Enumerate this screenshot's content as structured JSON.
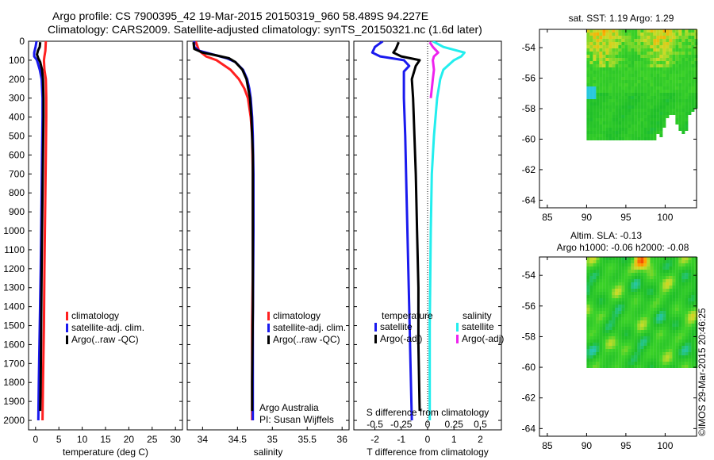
{
  "title": {
    "line1": "Argo profile: CS 7900395_42 19-Mar-2015 20150319_960 58.489S 94.227E",
    "line2": "Climatology: CARS2009. Satellite-adjusted climatology: synTS_20150321.nc (1.6d later)"
  },
  "colors": {
    "climatology": "#ff2020",
    "satellite": "#1a1aee",
    "argo": "#000000",
    "sal_satellite": "#22eeee",
    "sal_argo": "#ee22ee"
  },
  "chart_data": [
    {
      "type": "line",
      "id": "temperature",
      "xlabel": "temperature (deg C)",
      "ylabel": "",
      "xlim": [
        -1.5,
        31.5
      ],
      "ylim": [
        2050,
        0
      ],
      "xticks": [
        0,
        5,
        10,
        15,
        20,
        25,
        30
      ],
      "yticks": [
        0,
        100,
        200,
        300,
        400,
        500,
        600,
        700,
        800,
        900,
        1000,
        1100,
        1200,
        1300,
        1400,
        1500,
        1600,
        1700,
        1800,
        1900,
        2000
      ],
      "legend": [
        {
          "label": "climatology",
          "color": "#ff2020"
        },
        {
          "label": "satellite-adj. clim.",
          "color": "#1a1aee"
        },
        {
          "label": "Argo(..raw -QC)",
          "color": "#000000"
        }
      ],
      "series": [
        {
          "name": "climatology",
          "color": "#ff2020",
          "depth": [
            0,
            50,
            80,
            100,
            150,
            200,
            300,
            400,
            600,
            800,
            1000,
            1200,
            1500,
            1800,
            2000
          ],
          "values": [
            2.2,
            2.1,
            1.9,
            1.8,
            1.9,
            2.2,
            2.3,
            2.3,
            2.2,
            2.1,
            2.0,
            1.9,
            1.8,
            1.6,
            1.5
          ]
        },
        {
          "name": "satellite-adj. clim.",
          "color": "#1a1aee",
          "depth": [
            0,
            30,
            60,
            80,
            100,
            150,
            200,
            300,
            400,
            600,
            800,
            1000,
            1200,
            1500,
            1800,
            2000
          ],
          "values": [
            0.2,
            0.0,
            -0.3,
            -0.3,
            0.3,
            0.9,
            1.3,
            1.5,
            1.5,
            1.4,
            1.3,
            1.2,
            1.1,
            0.9,
            0.7,
            0.6
          ]
        },
        {
          "name": "Argo(..raw -QC)",
          "color": "#000000",
          "depth": [
            5,
            30,
            50,
            70,
            90,
            110,
            150,
            200,
            300,
            400,
            600,
            800,
            1000,
            1200,
            1500,
            1800,
            1950
          ],
          "values": [
            1.0,
            0.9,
            0.5,
            0.3,
            0.6,
            1.0,
            1.4,
            1.6,
            1.7,
            1.7,
            1.6,
            1.5,
            1.4,
            1.3,
            1.2,
            1.1,
            1.0
          ]
        }
      ]
    },
    {
      "type": "line",
      "id": "salinity",
      "xlabel": "salinity",
      "ylabel": "",
      "xlim": [
        33.78,
        36.1
      ],
      "ylim": [
        2050,
        0
      ],
      "xticks": [
        34,
        34.5,
        35,
        35.5,
        36
      ],
      "legend": [
        {
          "label": "climatology",
          "color": "#ff2020"
        },
        {
          "label": "satellite-adj. clim.",
          "color": "#1a1aee"
        },
        {
          "label": "Argo(..raw -QC)",
          "color": "#000000"
        }
      ],
      "annotations": [
        "Argo Australia",
        "PI: Susan Wijffels"
      ],
      "series": [
        {
          "name": "climatology",
          "color": "#ff2020",
          "depth": [
            0,
            50,
            80,
            100,
            150,
            200,
            250,
            300,
            400,
            500,
            700,
            900,
            1200,
            1500,
            2000
          ],
          "values": [
            33.9,
            33.95,
            34.05,
            34.2,
            34.4,
            34.52,
            34.6,
            34.65,
            34.69,
            34.71,
            34.72,
            34.72,
            34.72,
            34.71,
            34.71
          ]
        },
        {
          "name": "satellite-adj. clim.",
          "color": "#1a1aee",
          "depth": [
            0,
            30,
            50,
            70,
            90,
            110,
            150,
            200,
            250,
            300,
            400,
            500,
            700,
            1000,
            1500,
            2000
          ],
          "values": [
            33.88,
            33.88,
            33.95,
            34.15,
            34.35,
            34.47,
            34.58,
            34.64,
            34.67,
            34.69,
            34.71,
            34.72,
            34.73,
            34.73,
            34.72,
            34.72
          ]
        },
        {
          "name": "Argo(..raw -QC)",
          "color": "#000000",
          "depth": [
            5,
            40,
            60,
            75,
            90,
            110,
            150,
            200,
            300,
            400,
            600,
            800,
            1000,
            1400,
            1800,
            1950
          ],
          "values": [
            33.87,
            33.88,
            34.0,
            34.2,
            34.38,
            34.47,
            34.57,
            34.63,
            34.68,
            34.7,
            34.72,
            34.72,
            34.72,
            34.72,
            34.71,
            34.71
          ]
        }
      ]
    },
    {
      "type": "line",
      "id": "difference",
      "xlabel": "T difference from climatology",
      "xlabel_top": "S difference from climatology",
      "xlim": [
        -2.8,
        2.8
      ],
      "ylim": [
        2050,
        0
      ],
      "xticks": [
        -2,
        -1,
        0,
        1,
        2
      ],
      "xticks_top": [
        -0.5,
        -0.25,
        0,
        0.25,
        0.5
      ],
      "legend_left_title": "temperature",
      "legend_right_title": "salinity",
      "legend": [
        {
          "label": "satellite",
          "color": "#1a1aee"
        },
        {
          "label": "Argo(-adj)",
          "color": "#000000"
        },
        {
          "label": "satellite",
          "color": "#22eeee"
        },
        {
          "label": "Argo(-adj)",
          "color": "#ee22ee"
        }
      ],
      "series": [
        {
          "name": "temperature satellite",
          "color": "#1a1aee",
          "depth": [
            0,
            30,
            60,
            80,
            100,
            130,
            160,
            200,
            300,
            500,
            800,
            1100,
            1400,
            1700,
            2000
          ],
          "values": [
            -1.7,
            -2.0,
            -2.1,
            -1.8,
            -0.9,
            -0.7,
            -0.9,
            -0.9,
            -0.9,
            -0.85,
            -0.8,
            -0.75,
            -0.7,
            -0.65,
            -0.6
          ]
        },
        {
          "name": "temperature Argo(-adj)",
          "color": "#000000",
          "depth": [
            5,
            40,
            60,
            80,
            100,
            130,
            200,
            300,
            500,
            700,
            1000,
            1300,
            1600,
            1950
          ],
          "values": [
            -1.1,
            -1.2,
            -1.3,
            -1.0,
            -0.3,
            -0.45,
            -0.6,
            -0.55,
            -0.5,
            -0.45,
            -0.4,
            -0.35,
            -0.35,
            -0.3
          ]
        },
        {
          "name": "salinity satellite",
          "color": "#22eeee",
          "depth": [
            0,
            30,
            60,
            80,
            100,
            150,
            200,
            300,
            500,
            700,
            1000,
            1500,
            2000
          ],
          "values": [
            0.05,
            0.15,
            0.35,
            0.32,
            0.25,
            0.15,
            0.12,
            0.09,
            0.06,
            0.04,
            0.03,
            0.02,
            0.02
          ]
        },
        {
          "name": "salinity Argo(-adj)",
          "color": "#ee22ee",
          "depth": [
            5,
            30,
            60,
            80,
            100,
            150,
            200,
            300
          ],
          "values": [
            0.02,
            0.05,
            0.1,
            0.06,
            0.05,
            0.06,
            0.05,
            0.03
          ]
        }
      ]
    },
    {
      "type": "heatmap",
      "id": "sst-map",
      "title": "sat. SST: 1.19 Argo: 1.29",
      "xlim": [
        84,
        104
      ],
      "ylim": [
        -64.5,
        -52.8
      ],
      "xticks": [
        85,
        90,
        95,
        100
      ],
      "yticks": [
        -54,
        -56,
        -58,
        -60,
        -62,
        -64
      ],
      "data_extent": {
        "lon": [
          90,
          104
        ],
        "lat": [
          -60,
          -52.8
        ]
      }
    },
    {
      "type": "heatmap",
      "id": "sla-map",
      "title": "Altim. SLA: -0.13",
      "subtitle": "Argo h1000: -0.06 h2000: -0.08",
      "xlim": [
        84,
        104
      ],
      "ylim": [
        -64.5,
        -52.8
      ],
      "xticks": [
        85,
        90,
        95,
        100
      ],
      "yticks": [
        -54,
        -56,
        -58,
        -60,
        -62,
        -64
      ],
      "data_extent": {
        "lon": [
          90,
          104
        ],
        "lat": [
          -60,
          -52.8
        ]
      }
    }
  ],
  "stamp": "©IMOS 29-Mar-2015 20:46:25"
}
